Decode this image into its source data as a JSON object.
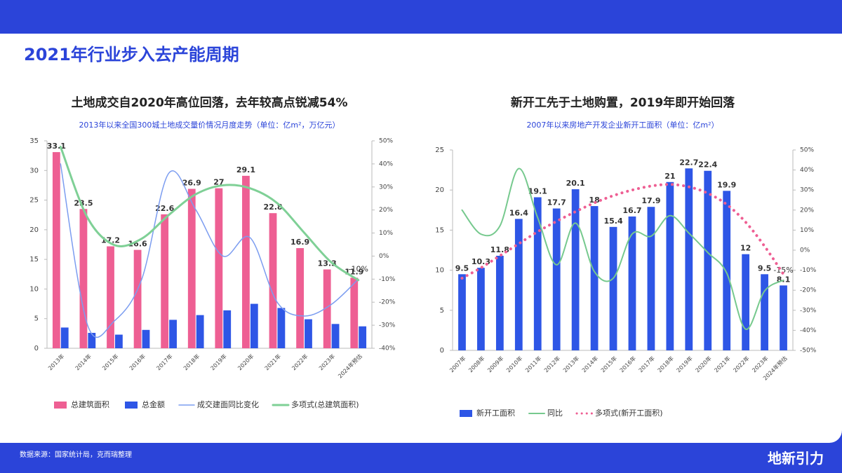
{
  "header": {
    "title": "2021年行业步入去产能周期"
  },
  "footer": {
    "source": "数据来源：国家统计局，克而瑞整理",
    "brand": "地新引力"
  },
  "chart_data": [
    {
      "type": "combo",
      "title": "土地成交自2020年高位回落，去年较高点锐减54%",
      "subtitle": "2013年以来全国300城土地成交量价情况月度走势（单位：亿m²，万亿元）",
      "categories": [
        "2013年",
        "2014年",
        "2015年",
        "2016年",
        "2017年",
        "2018年",
        "2019年",
        "2020年",
        "2021年",
        "2022年",
        "2023年",
        "2024年预估"
      ],
      "ylim": [
        0,
        35
      ],
      "yticks": [
        0,
        5,
        10,
        15,
        20,
        25,
        30,
        35
      ],
      "y2lim": [
        -40,
        50
      ],
      "y2ticks": [
        {
          "value": -40,
          "label": "-40%"
        },
        {
          "value": -30,
          "label": "-30%"
        },
        {
          "value": -20,
          "label": "-20%"
        },
        {
          "value": -10,
          "label": "-10%"
        },
        {
          "value": 0,
          "label": "0%"
        },
        {
          "value": 10,
          "label": "10%"
        },
        {
          "value": 20,
          "label": "20%"
        },
        {
          "value": 30,
          "label": "30%"
        },
        {
          "value": 40,
          "label": "40%"
        },
        {
          "value": 50,
          "label": "50%"
        }
      ],
      "series": [
        {
          "name": "总建筑面积",
          "type": "bar",
          "color": "#ee5f93",
          "data_labels": true,
          "values": [
            33.1,
            23.5,
            17.2,
            16.6,
            22.6,
            26.9,
            27.0,
            29.1,
            22.8,
            16.9,
            13.3,
            11.9
          ]
        },
        {
          "name": "总金额",
          "type": "bar",
          "color": "#2e56e6",
          "values": [
            3.5,
            2.6,
            2.3,
            3.1,
            4.8,
            5.6,
            6.4,
            7.5,
            6.8,
            4.9,
            4.1,
            3.7
          ]
        },
        {
          "name": "成交建面同比变化",
          "type": "line",
          "axis": "y2",
          "color": "#7c9df0",
          "width": 1.5,
          "values": [
            40,
            -30,
            -28,
            -10,
            36,
            20,
            0,
            8,
            -20,
            -26,
            -21,
            -10
          ],
          "value_labels": [
            null,
            null,
            null,
            null,
            null,
            null,
            null,
            null,
            null,
            null,
            null,
            "-10%"
          ]
        },
        {
          "name": "多项式(总建筑面积)",
          "type": "line",
          "color": "#7fd096",
          "width": 3,
          "values": [
            34,
            22,
            17.4,
            18.5,
            22.5,
            26,
            27.5,
            27,
            24.5,
            19.5,
            14.5,
            11.5
          ]
        }
      ]
    },
    {
      "type": "combo",
      "title": "新开工先于土地购置，2019年即开始回落",
      "subtitle": "2007年以来房地产开发企业新开工面积（单位：亿m²）",
      "categories": [
        "2007年",
        "2008年",
        "2009年",
        "2010年",
        "2011年",
        "2012年",
        "2013年",
        "2014年",
        "2015年",
        "2016年",
        "2017年",
        "2018年",
        "2019年",
        "2020年",
        "2021年",
        "2022年",
        "2023年",
        "2024年预估"
      ],
      "ylim": [
        0,
        25
      ],
      "yticks": [
        0,
        5,
        10,
        15,
        20,
        25
      ],
      "y2lim": [
        -50,
        50
      ],
      "y2ticks": [
        {
          "value": -50,
          "label": "-50%"
        },
        {
          "value": -40,
          "label": "-40%"
        },
        {
          "value": -30,
          "label": "-30%"
        },
        {
          "value": -20,
          "label": "-20%"
        },
        {
          "value": -10,
          "label": "-10%"
        },
        {
          "value": 0,
          "label": "0%"
        },
        {
          "value": 10,
          "label": "10%"
        },
        {
          "value": 20,
          "label": "20%"
        },
        {
          "value": 30,
          "label": "30%"
        },
        {
          "value": 40,
          "label": "40%"
        },
        {
          "value": 50,
          "label": "50%"
        }
      ],
      "series": [
        {
          "name": "新开工面积",
          "type": "bar",
          "color": "#2e56e6",
          "data_labels": true,
          "values": [
            9.5,
            10.3,
            11.8,
            16.4,
            19.1,
            17.7,
            20.1,
            18.0,
            15.4,
            16.7,
            17.9,
            21.0,
            22.7,
            22.4,
            19.9,
            12.0,
            9.5,
            8.1
          ]
        },
        {
          "name": "同比",
          "type": "line",
          "axis": "y2",
          "color": "#76c98e",
          "width": 2,
          "values": [
            20,
            8,
            12,
            40.7,
            16.2,
            -7.3,
            13.5,
            -10.7,
            -14,
            8.1,
            7,
            17.2,
            8.5,
            -1.2,
            -11.4,
            -39.4,
            -20.4,
            -15
          ],
          "value_labels": [
            null,
            null,
            null,
            null,
            null,
            null,
            null,
            null,
            null,
            null,
            null,
            null,
            null,
            null,
            null,
            null,
            null,
            "-15%"
          ]
        },
        {
          "name": "多项式(新开工面积)",
          "type": "line",
          "style": "dotted",
          "color": "#ee5f93",
          "width": 4,
          "values": [
            9,
            10.3,
            11.8,
            13.3,
            14.8,
            16.1,
            17.3,
            18.4,
            19.3,
            20,
            20.5,
            20.7,
            20.4,
            19.6,
            18.2,
            16,
            13,
            9.5
          ]
        }
      ]
    }
  ]
}
